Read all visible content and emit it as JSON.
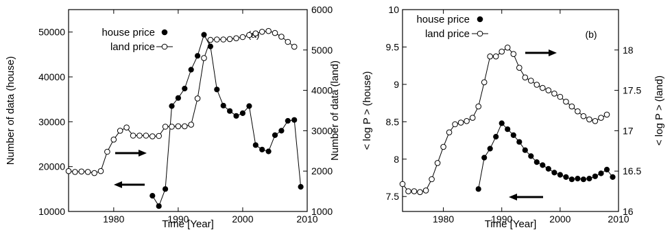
{
  "chart_data": [
    {
      "type": "line",
      "panel_label": "(a)",
      "xlabel": "Time  [Year]",
      "ylabel": "Number of data (house)",
      "y2label": "Number of data (land)",
      "xlim": [
        1973,
        2010
      ],
      "ylim": [
        10000,
        55000
      ],
      "y2lim": [
        1000,
        6000
      ],
      "xticks": [
        1980,
        1990,
        2000,
        2010
      ],
      "yticks": [
        10000,
        20000,
        30000,
        40000,
        50000
      ],
      "y2ticks": [
        1000,
        2000,
        3000,
        4000,
        5000,
        6000
      ],
      "legend_position": "top-right",
      "series": [
        {
          "name": "house price",
          "axis": "left",
          "marker": "filled-circle",
          "x": [
            1986,
            1987,
            1988,
            1989,
            1990,
            1991,
            1992,
            1993,
            1994,
            1995,
            1996,
            1997,
            1998,
            1999,
            2000,
            2001,
            2002,
            2003,
            2004,
            2005,
            2006,
            2007,
            2008,
            2009
          ],
          "values": [
            13500,
            11200,
            15000,
            33500,
            35300,
            37400,
            41600,
            44700,
            49400,
            46800,
            37200,
            33600,
            32400,
            31300,
            31900,
            33500,
            24800,
            23800,
            23400,
            27000,
            28000,
            30200,
            30400,
            15500
          ]
        },
        {
          "name": "land price",
          "axis": "right",
          "marker": "open-circle",
          "x": [
            1973,
            1974,
            1975,
            1976,
            1977,
            1978,
            1979,
            1980,
            1981,
            1982,
            1983,
            1984,
            1985,
            1986,
            1987,
            1988,
            1989,
            1990,
            1991,
            1992,
            1993,
            1994,
            1995,
            1996,
            1997,
            1998,
            1999,
            2000,
            2001,
            2002,
            2003,
            2004,
            2005,
            2006,
            2007,
            2008
          ],
          "values": [
            2000,
            1980,
            1990,
            1980,
            1950,
            2000,
            2480,
            2780,
            3000,
            3080,
            2880,
            2880,
            2880,
            2860,
            2870,
            3100,
            3100,
            3110,
            3110,
            3150,
            3800,
            4800,
            5250,
            5260,
            5260,
            5270,
            5290,
            5320,
            5370,
            5410,
            5450,
            5470,
            5420,
            5330,
            5200,
            5080
          ]
        }
      ]
    },
    {
      "type": "line",
      "panel_label": "(b)",
      "xlabel": "Time  [Year]",
      "ylabel": "< log P > (house)",
      "y2label": "< log P > (land)",
      "xlim": [
        1973,
        2010
      ],
      "ylim": [
        7.3,
        10
      ],
      "y2lim": [
        16,
        18.5
      ],
      "xticks": [
        1980,
        1990,
        2000,
        2010
      ],
      "yticks": [
        7.5,
        8,
        8.5,
        9,
        9.5,
        10
      ],
      "y2ticks": [
        16,
        16.5,
        17,
        17.5,
        18
      ],
      "legend_position": "top-left",
      "series": [
        {
          "name": "house price",
          "axis": "left",
          "marker": "filled-circle",
          "x": [
            1986,
            1987,
            1988,
            1989,
            1990,
            1991,
            1992,
            1993,
            1994,
            1995,
            1996,
            1997,
            1998,
            1999,
            2000,
            2001,
            2002,
            2003,
            2004,
            2005,
            2006,
            2007,
            2008,
            2009
          ],
          "values": [
            7.6,
            8.02,
            8.14,
            8.3,
            8.48,
            8.4,
            8.32,
            8.23,
            8.12,
            8.04,
            7.96,
            7.92,
            7.87,
            7.82,
            7.79,
            7.76,
            7.73,
            7.74,
            7.73,
            7.74,
            7.77,
            7.81,
            7.86,
            7.76
          ]
        },
        {
          "name": "land price",
          "axis": "right",
          "marker": "open-circle",
          "x": [
            1973,
            1974,
            1975,
            1976,
            1977,
            1978,
            1979,
            1980,
            1981,
            1982,
            1983,
            1984,
            1985,
            1986,
            1987,
            1988,
            1989,
            1990,
            1991,
            1992,
            1993,
            1994,
            1995,
            1996,
            1997,
            1998,
            1999,
            2000,
            2001,
            2002,
            2003,
            2004,
            2005,
            2006,
            2007,
            2008
          ],
          "values": [
            16.34,
            16.25,
            16.25,
            16.24,
            16.26,
            16.4,
            16.6,
            16.8,
            16.98,
            17.08,
            17.1,
            17.12,
            17.16,
            17.3,
            17.6,
            17.92,
            17.92,
            17.98,
            18.03,
            17.95,
            17.78,
            17.66,
            17.62,
            17.57,
            17.53,
            17.5,
            17.46,
            17.42,
            17.36,
            17.3,
            17.24,
            17.18,
            17.14,
            17.12,
            17.16,
            17.2
          ]
        }
      ]
    }
  ]
}
